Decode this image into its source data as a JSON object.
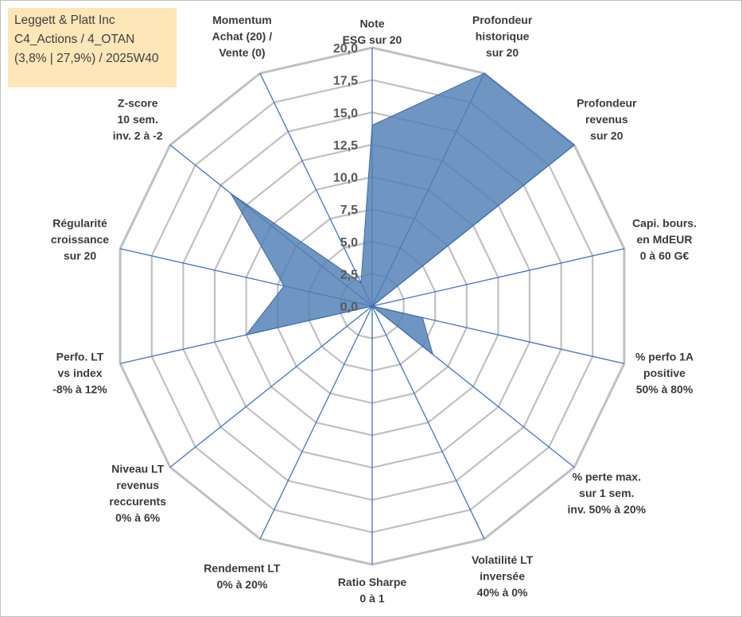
{
  "info": {
    "line1": "Leggett & Platt Inc",
    "line2": "C4_Actions / 4_OTAN",
    "line3": "(3,8% | 27,9%) / 2025W40"
  },
  "chart_data": {
    "type": "radar",
    "rmax": 20,
    "ticks": [
      "0,0",
      "2,5",
      "5,0",
      "7,5",
      "10,0",
      "12,5",
      "15,0",
      "17,5",
      "20,0"
    ],
    "axes": [
      {
        "label": [
          "Note",
          "ESG sur 20"
        ],
        "value": 14.0
      },
      {
        "label": [
          "Profondeur",
          "historique",
          "sur 20"
        ],
        "value": 20.0
      },
      {
        "label": [
          "Profondeur",
          "revenus",
          "sur 20"
        ],
        "value": 20.0
      },
      {
        "label": [
          "Capi. bours.",
          "en MdEUR",
          "0 à 60 G€"
        ],
        "value": 0.0
      },
      {
        "label": [
          "% perfo 1A",
          "positive",
          "50% à 80%"
        ],
        "value": 4.0
      },
      {
        "label": [
          "% perte max.",
          "sur 1 sem.",
          "inv. 50% à 20%"
        ],
        "value": 6.0
      },
      {
        "label": [
          "Volatilité LT",
          "inversée",
          "40% à 0%"
        ],
        "value": 0.0
      },
      {
        "label": [
          "Ratio Sharpe",
          "0 à 1"
        ],
        "value": 5.0
      },
      {
        "label": [
          "Rendement LT",
          "0% à 20%"
        ],
        "value": 0.0
      },
      {
        "label": [
          "Niveau LT",
          "revenus",
          "reccurents",
          "0% à 6%"
        ],
        "value": 0.0
      },
      {
        "label": [
          "Perfo. LT",
          "vs index",
          "-8% à 12%"
        ],
        "value": 10.0
      },
      {
        "label": [
          "Régularité",
          "croissance",
          "sur 20"
        ],
        "value": 7.0
      },
      {
        "label": [
          "Z-score",
          "10 sem.",
          "inv. 2 à -2"
        ],
        "value": 2.0
      },
      {
        "label": [
          "Z-score",
          "10 sem.",
          "inv. 2 à -2"
        ],
        "value": 14.0
      },
      {
        "label": [
          "Momentum",
          "Achat (20) /",
          "Vente (0)"
        ],
        "value": 2.0
      }
    ],
    "colors": {
      "fill": "#4f7fb5",
      "spoke": "#4472c4",
      "grid": "#c0c0c0"
    }
  }
}
